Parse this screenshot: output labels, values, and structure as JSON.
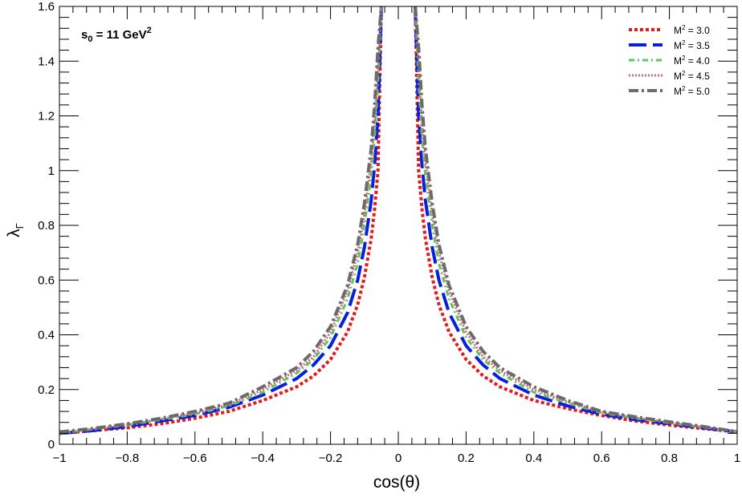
{
  "chart_data": {
    "type": "line",
    "annotation": {
      "main": "s",
      "sub": "0",
      "rest": " = 11 GeV",
      "sup": "2"
    },
    "xlabel": "cos(θ)",
    "ylabel": {
      "main": "λ",
      "sub": "Γ"
    },
    "xlim": [
      -1,
      1
    ],
    "ylim": [
      0,
      1.6
    ],
    "xticks": [
      -1,
      -0.8,
      -0.6,
      -0.4,
      -0.2,
      0,
      0.2,
      0.4,
      0.6,
      0.8,
      1
    ],
    "xtick_labels": [
      "−1",
      "−0.8",
      "−0.6",
      "−0.4",
      "−0.2",
      "0",
      "0.2",
      "0.4",
      "0.6",
      "0.8",
      "1"
    ],
    "yticks": [
      0,
      0.2,
      0.4,
      0.6,
      0.8,
      1,
      1.2,
      1.4,
      1.6
    ],
    "ytick_labels": [
      "0",
      "0.2",
      "0.4",
      "0.6",
      "0.8",
      "1",
      "1.2",
      "1.4",
      "1.6"
    ],
    "legend_position": "top-right",
    "grid": false,
    "x": [
      -1,
      -0.9,
      -0.8,
      -0.7,
      -0.6,
      -0.5,
      -0.4,
      -0.3,
      -0.25,
      -0.2,
      -0.15,
      -0.12,
      -0.1,
      -0.08,
      -0.07,
      -0.06,
      -0.05,
      0.05,
      0.06,
      0.07,
      0.08,
      0.1,
      0.12,
      0.15,
      0.2,
      0.25,
      0.3,
      0.4,
      0.5,
      0.6,
      0.7,
      0.8,
      0.9,
      1
    ],
    "series": [
      {
        "name": "M² = 3.0",
        "legend": {
          "main": "M",
          "sup": "2",
          "rest": " = 3.0"
        },
        "color": "#e41a1c",
        "dash": "4 3",
        "width": 4,
        "values": [
          0.04,
          0.05,
          0.06,
          0.075,
          0.095,
          0.12,
          0.16,
          0.21,
          0.25,
          0.31,
          0.41,
          0.51,
          0.61,
          0.75,
          0.86,
          1.0,
          1.6,
          1.6,
          1.0,
          0.86,
          0.75,
          0.61,
          0.51,
          0.41,
          0.31,
          0.25,
          0.21,
          0.16,
          0.13,
          0.105,
          0.085,
          0.07,
          0.057,
          0.045
        ]
      },
      {
        "name": "M² = 3.5",
        "legend": {
          "main": "M",
          "sup": "2",
          "rest": " = 3.5"
        },
        "color": "#0a1fdc",
        "dash": "22 8",
        "width": 4,
        "values": [
          0.04,
          0.05,
          0.065,
          0.085,
          0.105,
          0.135,
          0.18,
          0.24,
          0.29,
          0.36,
          0.48,
          0.6,
          0.72,
          0.89,
          1.02,
          1.2,
          1.6,
          1.6,
          1.2,
          1.02,
          0.89,
          0.72,
          0.6,
          0.48,
          0.36,
          0.29,
          0.24,
          0.18,
          0.14,
          0.11,
          0.09,
          0.075,
          0.06,
          0.045
        ]
      },
      {
        "name": "M² = 4.0",
        "legend": {
          "main": "M",
          "sup": "2",
          "rest": " = 4.0"
        },
        "color": "#5cc85c",
        "dash": "7 4 2 4",
        "width": 3,
        "values": [
          0.04,
          0.055,
          0.07,
          0.09,
          0.11,
          0.14,
          0.19,
          0.26,
          0.31,
          0.39,
          0.53,
          0.66,
          0.8,
          0.98,
          1.12,
          1.32,
          1.6,
          1.6,
          1.32,
          1.12,
          0.98,
          0.8,
          0.66,
          0.53,
          0.39,
          0.31,
          0.26,
          0.19,
          0.15,
          0.115,
          0.095,
          0.078,
          0.062,
          0.045
        ]
      },
      {
        "name": "M² = 4.5",
        "legend": {
          "main": "M",
          "sup": "2",
          "rest": " = 4.5"
        },
        "color": "#d16a7a",
        "dash": "2 2",
        "width": 3,
        "values": [
          0.04,
          0.055,
          0.072,
          0.092,
          0.115,
          0.145,
          0.2,
          0.27,
          0.32,
          0.41,
          0.56,
          0.7,
          0.84,
          1.03,
          1.18,
          1.39,
          1.6,
          1.6,
          1.39,
          1.18,
          1.03,
          0.84,
          0.7,
          0.56,
          0.41,
          0.32,
          0.27,
          0.2,
          0.155,
          0.118,
          0.097,
          0.08,
          0.063,
          0.045
        ]
      },
      {
        "name": "M² = 5.0",
        "legend": {
          "main": "M",
          "sup": "2",
          "rest": " = 5.0"
        },
        "color": "#6b6b6b",
        "dash": "12 4 3 4",
        "width": 4,
        "values": [
          0.045,
          0.058,
          0.075,
          0.095,
          0.12,
          0.15,
          0.21,
          0.28,
          0.34,
          0.43,
          0.58,
          0.73,
          0.88,
          1.08,
          1.24,
          1.45,
          1.6,
          1.6,
          1.45,
          1.24,
          1.08,
          0.88,
          0.73,
          0.58,
          0.43,
          0.34,
          0.28,
          0.21,
          0.16,
          0.12,
          0.1,
          0.082,
          0.065,
          0.046
        ]
      }
    ]
  }
}
